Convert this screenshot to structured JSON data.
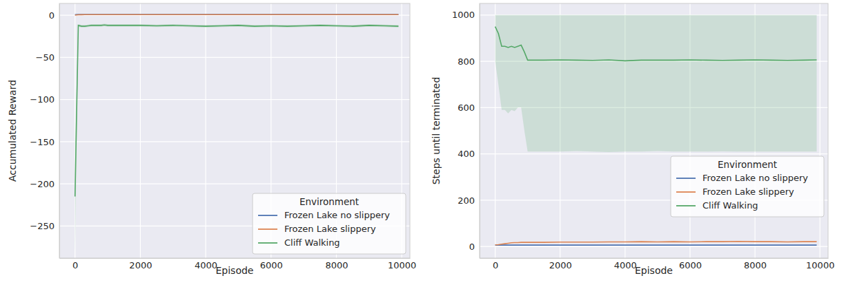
{
  "chart_data": [
    {
      "type": "line",
      "x_label": "Episode",
      "y_label": "Accumulated Reward",
      "x": [
        0,
        100,
        200,
        300,
        400,
        500,
        600,
        700,
        800,
        900,
        1000,
        1500,
        2000,
        2500,
        3000,
        3500,
        4000,
        4500,
        5000,
        5500,
        6000,
        6500,
        7000,
        7500,
        8000,
        8500,
        9000,
        9500,
        9900
      ],
      "xlim": [
        -480,
        10250
      ],
      "xticks": [
        0,
        2000,
        4000,
        6000,
        8000,
        10000
      ],
      "ylim": [
        -288,
        14
      ],
      "yticks": [
        {
          "value": -250,
          "label": "−250"
        },
        {
          "value": -200,
          "label": "−200"
        },
        {
          "value": -150,
          "label": "−150"
        },
        {
          "value": -100,
          "label": "−100"
        },
        {
          "value": -50,
          "label": "−50"
        },
        0
      ],
      "grid": true,
      "legend": "lower right",
      "legend_title": "Environment",
      "series": [
        {
          "name": "Frozen Lake no slippery",
          "color": "#4c72b0",
          "values": [
            0.6,
            1,
            1,
            1,
            1,
            1,
            1,
            1,
            1,
            1,
            1,
            1,
            1,
            1,
            1,
            1,
            1,
            1,
            1,
            1,
            1,
            1,
            1,
            1,
            1,
            1,
            1,
            1,
            1
          ]
        },
        {
          "name": "Frozen Lake slippery",
          "color": "#dd8452",
          "values": [
            0.1,
            0.5,
            0.6,
            0.7,
            0.7,
            0.7,
            0.7,
            0.7,
            0.7,
            0.7,
            0.7,
            0.7,
            0.7,
            0.7,
            0.7,
            0.7,
            0.7,
            0.7,
            0.7,
            0.7,
            0.7,
            0.7,
            0.7,
            0.7,
            0.7,
            0.7,
            0.7,
            0.7,
            0.7
          ]
        },
        {
          "name": "Cliff Walking",
          "color": "#55a868",
          "values": [
            -215,
            -12,
            -13,
            -13,
            -12.5,
            -12,
            -12,
            -12,
            -12,
            -11.5,
            -12,
            -12,
            -12,
            -12.5,
            -12,
            -12.5,
            -13,
            -12.5,
            -12,
            -13,
            -12.5,
            -13,
            -12.5,
            -12,
            -12.5,
            -13,
            -12,
            -12.5,
            -13
          ],
          "lower": [
            -285,
            -13.5,
            -14.5,
            -14.5,
            -14,
            -13.5,
            -13.5,
            -13.5,
            -13.5,
            -13,
            -13.5,
            -13.5,
            -13.5,
            -14,
            -13.5,
            -14,
            -14.5,
            -14,
            -13.5,
            -14.5,
            -14,
            -14.5,
            -14,
            -13.5,
            -14,
            -14.5,
            -13.5,
            -14,
            -14.5
          ],
          "upper": [
            -150,
            -10.5,
            -11.5,
            -11.5,
            -11,
            -10.5,
            -10.5,
            -10.5,
            -10.5,
            -10,
            -10.5,
            -10.5,
            -10.5,
            -11,
            -10.5,
            -11,
            -11.5,
            -11,
            -10.5,
            -11.5,
            -11,
            -11.5,
            -11,
            -10.5,
            -11,
            -11.5,
            -10.5,
            -11,
            -11.5
          ]
        }
      ]
    },
    {
      "type": "line",
      "x_label": "Episode",
      "y_label": "Steps until terminated",
      "x": [
        0,
        100,
        200,
        300,
        400,
        500,
        600,
        700,
        800,
        900,
        1000,
        1500,
        2000,
        2500,
        3000,
        3500,
        4000,
        4500,
        5000,
        5500,
        6000,
        6500,
        7000,
        7500,
        8000,
        8500,
        9000,
        9500,
        9900
      ],
      "xlim": [
        -480,
        10250
      ],
      "xticks": [
        0,
        2000,
        4000,
        6000,
        8000,
        10000
      ],
      "ylim": [
        -50,
        1050
      ],
      "yticks": [
        0,
        200,
        400,
        600,
        800,
        1000
      ],
      "grid": true,
      "legend": "center right",
      "legend_title": "Environment",
      "series": [
        {
          "name": "Frozen Lake no slippery",
          "color": "#4c72b0",
          "values": [
            6,
            6,
            6,
            6,
            6,
            6,
            6,
            6,
            6,
            6,
            6,
            6,
            6,
            6,
            6,
            6,
            6,
            6,
            6,
            6,
            6,
            6,
            6,
            6,
            6,
            6,
            6,
            6,
            6
          ]
        },
        {
          "name": "Frozen Lake slippery",
          "color": "#dd8452",
          "values": [
            7,
            8,
            10,
            12,
            14,
            16,
            17,
            17,
            18,
            18,
            18,
            18,
            19,
            19,
            19,
            20,
            20,
            21,
            20,
            21,
            20,
            21,
            21,
            22,
            21,
            21,
            20,
            21,
            21
          ]
        },
        {
          "name": "Cliff Walking",
          "color": "#55a868",
          "values": [
            950,
            920,
            865,
            865,
            860,
            865,
            860,
            865,
            870,
            840,
            805,
            805,
            806,
            805,
            804,
            806,
            802,
            805,
            805,
            805,
            806,
            805,
            804,
            805,
            806,
            805,
            804,
            805,
            806
          ],
          "lower": [
            800,
            700,
            590,
            590,
            575,
            590,
            585,
            600,
            600,
            500,
            410,
            410,
            410,
            412,
            410,
            408,
            410,
            410,
            412,
            410,
            410,
            410,
            411,
            410,
            410,
            410,
            410,
            410,
            410
          ],
          "upper": [
            1000,
            1000,
            1000,
            1000,
            1000,
            1000,
            1000,
            1000,
            1000,
            1000,
            1000,
            1000,
            1000,
            1000,
            1000,
            1000,
            1000,
            1000,
            1000,
            1000,
            1000,
            1000,
            1000,
            1000,
            1000,
            1000,
            1000,
            1000,
            1000
          ]
        }
      ]
    }
  ]
}
